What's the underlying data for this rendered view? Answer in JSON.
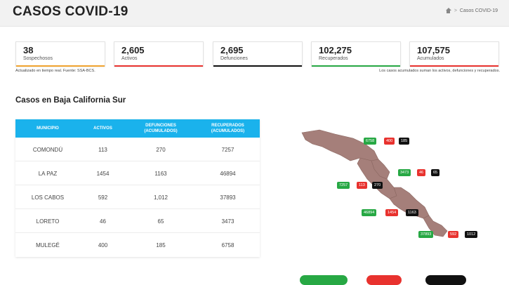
{
  "header": {
    "title": "CASOS COVID-19",
    "breadcrumb_separator": ">",
    "breadcrumb_current": "Casos COVID-19"
  },
  "stats": [
    {
      "value": "38",
      "label": "Sospechosos",
      "color": "#f0a32f"
    },
    {
      "value": "2,605",
      "label": "Activos",
      "color": "#e8322e"
    },
    {
      "value": "2,695",
      "label": "Defunciones",
      "color": "#111111"
    },
    {
      "value": "102,275",
      "label": "Recuperados",
      "color": "#27a844"
    },
    {
      "value": "107,575",
      "label": "Acumulados",
      "color": "#e8322e"
    }
  ],
  "notes": {
    "left": "Actualizado en tiempo real. Fuente: SSA-BCS.",
    "right": "Los casos acumulados suman los activos, defunciones y recuperados."
  },
  "section_title": "Casos en Baja California Sur",
  "table": {
    "header_color": "#1ab2ec",
    "columns": [
      "MUNICIPIO",
      "ACTIVOS",
      "DEFUNCIONES\n(ACUMULADOS)",
      "RECUPERADOS\n(ACUMULADOS)"
    ],
    "rows": [
      {
        "municipio": "COMONDÚ",
        "activos": "113",
        "defunciones": "270",
        "recuperados": "7257"
      },
      {
        "municipio": "LA PAZ",
        "activos": "1454",
        "defunciones": "1163",
        "recuperados": "46894"
      },
      {
        "municipio": "LOS CABOS",
        "activos": "592",
        "defunciones": "1,012",
        "recuperados": "37893"
      },
      {
        "municipio": "LORETO",
        "activos": "46",
        "defunciones": "65",
        "recuperados": "3473"
      },
      {
        "municipio": "MULEGÉ",
        "activos": "400",
        "defunciones": "185",
        "recuperados": "6758"
      }
    ]
  },
  "map": {
    "region_color": "#a57f7a",
    "labels": [
      {
        "region": "mulege",
        "recuperados": "6758",
        "activos": "400",
        "defunciones": "185"
      },
      {
        "region": "loreto",
        "recuperados": "3473",
        "activos": "46",
        "defunciones": "65"
      },
      {
        "region": "comondu",
        "recuperados": "7257",
        "activos": "113",
        "defunciones": "270"
      },
      {
        "region": "la-paz",
        "recuperados": "46894",
        "activos": "1454",
        "defunciones": "1163"
      },
      {
        "region": "los-cabos",
        "recuperados": "37893",
        "activos": "592",
        "defunciones": "1012"
      }
    ]
  }
}
